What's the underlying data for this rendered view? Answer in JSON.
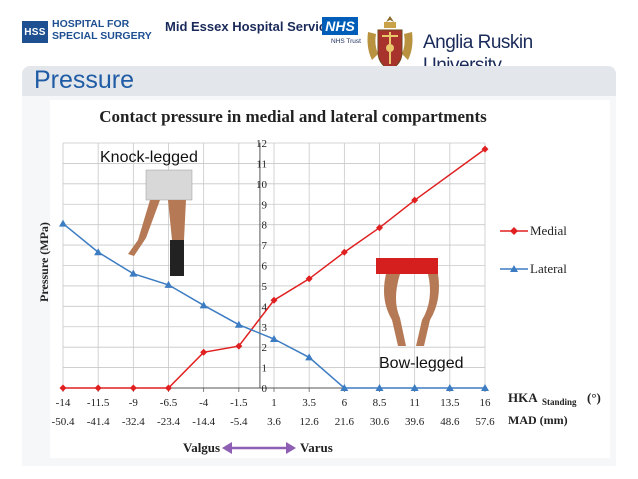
{
  "header": {
    "hss_badge": "HSS",
    "hss_line1": "HOSPITAL FOR",
    "hss_line2": "SPECIAL SURGERY",
    "mid_essex": "Mid Essex Hospital Services",
    "nhs": "NHS",
    "nhs_trust": "NHS Trust",
    "anglia_line1": "Anglia Ruskin",
    "anglia_line2": "University"
  },
  "slide_title": "Pressure",
  "photo_labels": {
    "knock": "Knock-legged",
    "bow": "Bow-legged"
  },
  "colors": {
    "medial": "#e02020",
    "lateral": "#3c7cc2",
    "title_blue": "#1f5ca5",
    "varus_purple": "#8e5db4"
  },
  "chart_data": {
    "type": "line",
    "title": "Contact pressure in medial and lateral compartments",
    "ylabel": "Pressure (MPa)",
    "ylim": [
      0,
      12
    ],
    "yticks": [
      "0",
      "1",
      "2",
      "3",
      "4",
      "5",
      "6",
      "7",
      "8",
      "9",
      "10",
      "11",
      "12"
    ],
    "x_label_hka_main": "HKA",
    "x_label_hka_sub": "Standing",
    "x_label_hka_unit": "(°)",
    "x_label_mad": "MAD (mm)",
    "hka_ticks": [
      "-14",
      "-11.5",
      "-9",
      "-6.5",
      "-4",
      "-1.5",
      "1",
      "3.5",
      "6",
      "8.5",
      "11",
      "13.5",
      "16"
    ],
    "mad_ticks": [
      "-50.4",
      "-41.4",
      "-32.4",
      "-23.4",
      "-14.4",
      "-5.4",
      "3.6",
      "12.6",
      "21.6",
      "30.6",
      "39.6",
      "48.6",
      "57.6"
    ],
    "x": [
      -14,
      -11.5,
      -9,
      -6.5,
      -4,
      -1.5,
      1,
      3.5,
      6,
      8.5,
      11,
      13.5,
      16
    ],
    "series": [
      {
        "name": "Medial",
        "color": "#e02020",
        "marker": "diamond",
        "points": [
          [
            -14,
            0
          ],
          [
            -11.5,
            0
          ],
          [
            -9,
            0
          ],
          [
            -6.5,
            0
          ],
          [
            -4,
            1.75
          ],
          [
            -1.5,
            2.05
          ],
          [
            1,
            4.3
          ],
          [
            3.5,
            5.35
          ],
          [
            6,
            6.65
          ],
          [
            8.5,
            7.85
          ],
          [
            11,
            9.2
          ],
          [
            16,
            11.7
          ]
        ]
      },
      {
        "name": "Lateral",
        "color": "#3c7cc2",
        "marker": "triangle",
        "points": [
          [
            -14,
            8.05
          ],
          [
            -11.5,
            6.65
          ],
          [
            -9,
            5.6
          ],
          [
            -6.5,
            5.05
          ],
          [
            -4,
            4.05
          ],
          [
            -1.5,
            3.1
          ],
          [
            1,
            2.4
          ],
          [
            3.5,
            1.5
          ],
          [
            6,
            0
          ],
          [
            8.5,
            0
          ],
          [
            11,
            0
          ],
          [
            13.5,
            0
          ],
          [
            16,
            0
          ]
        ]
      }
    ],
    "legend": [
      "Medial",
      "Lateral"
    ],
    "legend_position": "right",
    "grid": true,
    "annotations": {
      "valgus": "Valgus",
      "varus": "Varus"
    }
  }
}
